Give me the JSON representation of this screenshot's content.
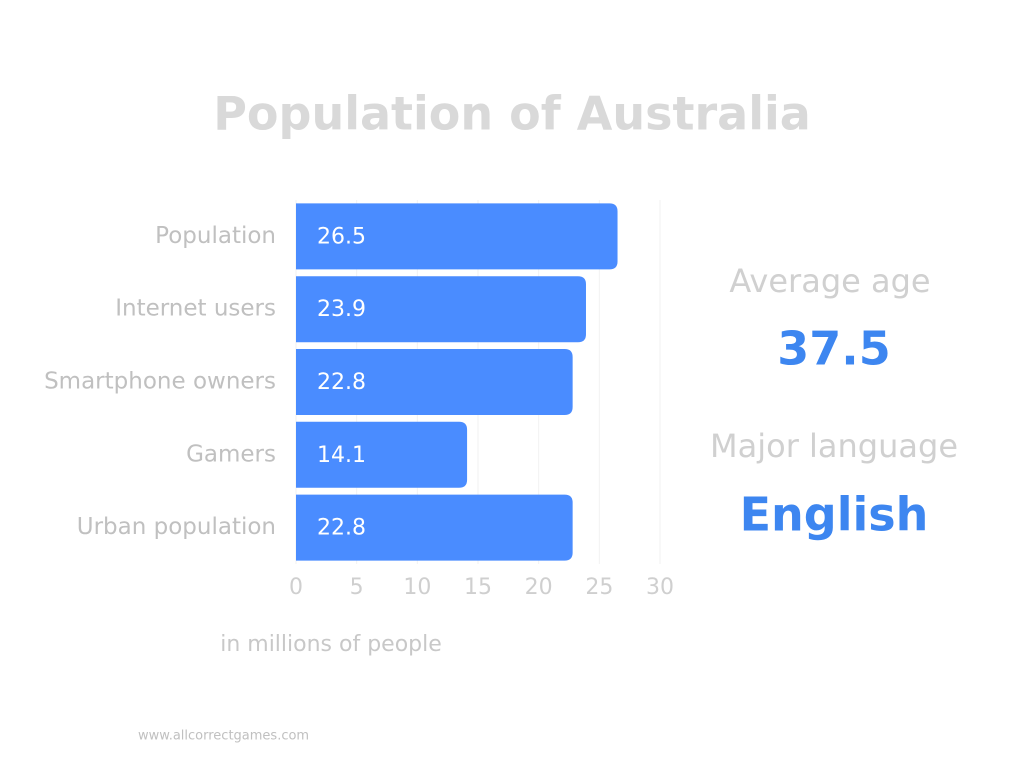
{
  "chart_data": {
    "type": "hbar",
    "title": "Population of Australia",
    "categories": [
      "Population",
      "Internet users",
      "Smartphone owners",
      "Gamers",
      "Urban population"
    ],
    "values": [
      26.5,
      23.9,
      22.8,
      14.1,
      22.8
    ],
    "color": "#4a8cff",
    "xlim": [
      0,
      30
    ],
    "xticks": [
      0,
      5,
      10,
      15,
      20,
      25,
      30
    ],
    "grid": true,
    "xlabel": "in millions of people"
  },
  "stats": [
    {
      "label": "Average age",
      "value": 37.5
    },
    {
      "label": "Major language",
      "value": "English"
    }
  ],
  "footer": "www.allcorrectgames.com"
}
